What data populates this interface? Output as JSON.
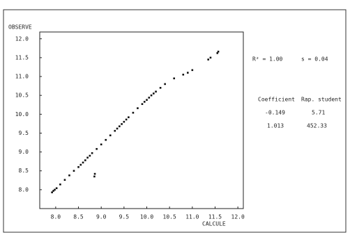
{
  "chart_data": {
    "type": "scatter",
    "x_label": "CALCULE",
    "y_label": "OBSERVE",
    "x": [
      7.92,
      7.95,
      7.98,
      8.02,
      8.1,
      8.2,
      8.3,
      8.4,
      8.5,
      8.55,
      8.6,
      8.65,
      8.7,
      8.75,
      8.8,
      8.9,
      9.0,
      9.1,
      9.2,
      9.3,
      9.35,
      9.4,
      9.45,
      9.5,
      9.55,
      9.6,
      9.7,
      9.8,
      9.9,
      9.95,
      10.0,
      10.05,
      10.1,
      10.15,
      10.2,
      10.3,
      10.4,
      10.6,
      10.8,
      10.9,
      11.0,
      11.35,
      11.4,
      11.55,
      11.57,
      8.85,
      8.86
    ],
    "values": [
      7.93,
      7.97,
      8.0,
      8.04,
      8.14,
      8.26,
      8.38,
      8.5,
      8.6,
      8.66,
      8.72,
      8.78,
      8.85,
      8.9,
      8.97,
      9.08,
      9.2,
      9.32,
      9.44,
      9.56,
      9.62,
      9.68,
      9.74,
      9.8,
      9.86,
      9.92,
      10.04,
      10.16,
      10.27,
      10.33,
      10.38,
      10.44,
      10.5,
      10.55,
      10.6,
      10.7,
      10.8,
      10.95,
      11.05,
      11.1,
      11.17,
      11.45,
      11.5,
      11.62,
      11.66,
      8.35,
      8.42
    ],
    "color": "#111111",
    "xlim": [
      7.65,
      12.12
    ],
    "ylim": [
      7.5,
      12.18
    ],
    "xticks": [
      {
        "value": 8,
        "label": "8.0"
      },
      8.5,
      {
        "value": 9,
        "label": "9.0"
      },
      9.5,
      {
        "value": 10,
        "label": "10.0"
      },
      10.5,
      {
        "value": 11,
        "label": "11.0"
      },
      11.5,
      {
        "value": 12,
        "label": "12.0"
      }
    ],
    "yticks": [
      {
        "value": 8,
        "label": "8.0"
      },
      8.5,
      {
        "value": 9,
        "label": "9.0"
      },
      9.5,
      {
        "value": 10,
        "label": "10.0"
      },
      10.5,
      {
        "value": 11,
        "label": "11.0"
      },
      11.5,
      {
        "value": 12,
        "label": "12.0"
      }
    ],
    "annotations": [
      "R² = 1.00",
      "s = 0.04"
    ],
    "table": {
      "header": [
        "Coefficient",
        "Rap. student"
      ],
      "rows": [
        [
          "-0.149",
          "5.71"
        ],
        [
          "1.013",
          "452.33"
        ]
      ]
    }
  }
}
